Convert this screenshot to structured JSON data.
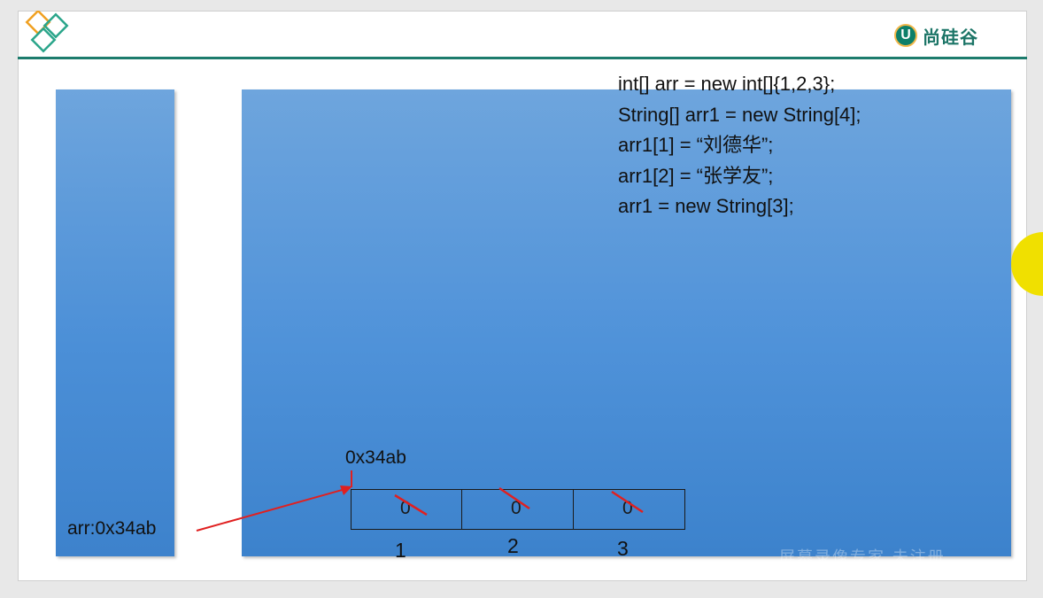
{
  "brand": {
    "badge_letter": "U",
    "name": "尚硅谷"
  },
  "code_lines": [
    "int[] arr = new int[]{1,2,3};",
    "String[] arr1 = new String[4];",
    "arr1[1] = “刘德华”;",
    "arr1[2] = “张学友”;",
    "arr1 = new String[3];"
  ],
  "stack": {
    "variable_label": "arr:0x34ab"
  },
  "heap": {
    "array_address": "0x34ab",
    "cells": [
      {
        "value": "0",
        "index_label": "1"
      },
      {
        "value": "0",
        "index_label": "2"
      },
      {
        "value": "0",
        "index_label": "3"
      }
    ]
  },
  "watermark": "屏幕录像专家 未注册",
  "colors": {
    "panel_blue": "#4b8fd7",
    "header_line": "#1d7c6d",
    "arrow_red": "#e02020",
    "strike_red": "#e02020",
    "cursor_highlight": "#f0e000"
  },
  "icons": [
    "logo-diamonds-icon",
    "brand-u-icon",
    "pointer-arrow-icon"
  ]
}
